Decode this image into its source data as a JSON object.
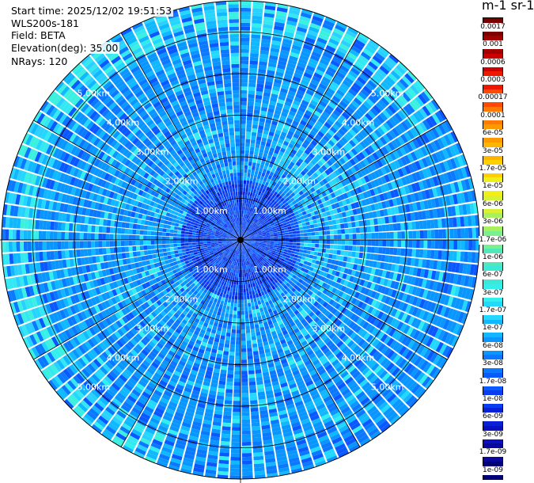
{
  "header": {
    "start_time": "Start time: 2025/12/02 19:51:53",
    "instrument": "WLS200s-181",
    "field": "Field: BETA",
    "elevation": "Elevation(deg): 35.00",
    "nrays": "NRays: 120"
  },
  "colorbar": {
    "title": "m-1 sr-1",
    "labels": [
      "0.0017",
      "0.001",
      "0.0006",
      "0.0003",
      "0.00017",
      "0.0001",
      "6e-05",
      "3e-05",
      "1.7e-05",
      "1e-05",
      "6e-06",
      "3e-06",
      "1.7e-06",
      "1e-06",
      "6e-07",
      "3e-07",
      "1.7e-07",
      "1e-07",
      "6e-08",
      "3e-08",
      "1.7e-08",
      "1e-08",
      "6e-09",
      "3e-09",
      "1.7e-09",
      "1e-09"
    ],
    "colors": [
      "#7a0000",
      "#a00000",
      "#cc0000",
      "#ee1800",
      "#ff4a00",
      "#ff7a00",
      "#ff9900",
      "#ffb400",
      "#ffd000",
      "#f2ee18",
      "#d8f230",
      "#a8f060",
      "#78f090",
      "#50e8b8",
      "#3ce8d8",
      "#33eeee",
      "#22d8ff",
      "#10b8ff",
      "#0a96ff",
      "#0a78ff",
      "#0a58ff",
      "#0a3cf0",
      "#0820d8",
      "#0a10c0",
      "#08089c",
      "#000078"
    ]
  },
  "chart_data": {
    "type": "heatmap",
    "subtype": "polar-ppi",
    "nrays": 120,
    "elevation_deg": 35.0,
    "range_rings_km": [
      1.0,
      2.0,
      3.0,
      4.0,
      5.0
    ],
    "ring_labels": [
      "1.00km",
      "2.00km",
      "3.00km",
      "4.00km",
      "5.00km"
    ],
    "max_range_km": 5.75,
    "field": "BETA",
    "colorscale": "log",
    "value_range": [
      1e-09,
      0.0017
    ],
    "dominant_value_range": [
      1.7e-08,
      1.7e-07
    ],
    "grid": true
  }
}
